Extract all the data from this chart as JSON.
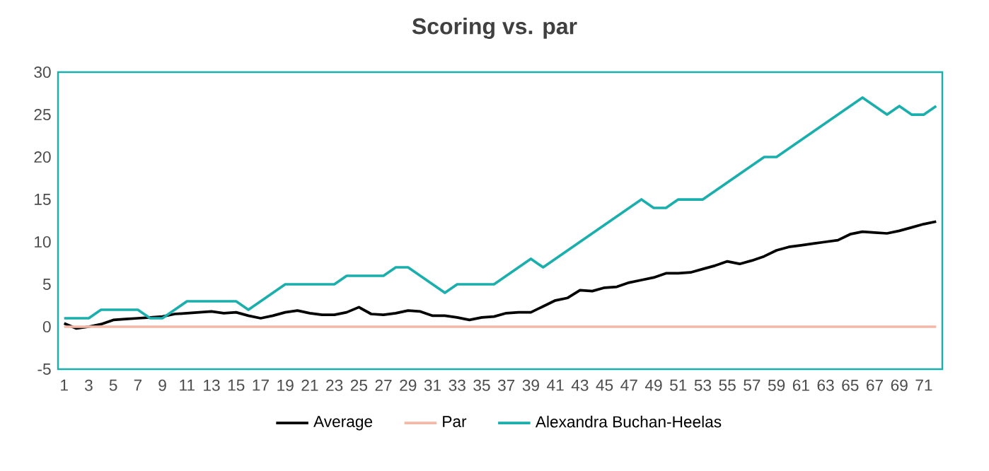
{
  "chart_data": {
    "type": "line",
    "title": "Scoring vs. par",
    "categories": [
      "1",
      null,
      "3",
      null,
      "5",
      null,
      "7",
      null,
      "9",
      null,
      "11",
      null,
      "13",
      null,
      "15",
      null,
      "17",
      null,
      "19",
      null,
      "21",
      null,
      "23",
      null,
      "25",
      null,
      "27",
      null,
      "29",
      null,
      "31",
      null,
      "33",
      null,
      "35",
      null,
      "37",
      null,
      "39",
      null,
      "41",
      null,
      "43",
      null,
      "45",
      null,
      "47",
      null,
      "49",
      null,
      "51",
      null,
      "53",
      null,
      "55",
      null,
      "57",
      null,
      "59",
      null,
      "61",
      null,
      "63",
      null,
      "65",
      null,
      "67",
      null,
      "69",
      null,
      "71",
      null
    ],
    "series": [
      {
        "name": "Average",
        "color": "#000000",
        "values": [
          0.4,
          -0.2,
          0,
          0.3,
          0.8,
          0.9,
          1.0,
          1.1,
          1.2,
          1.5,
          1.6,
          1.7,
          1.8,
          1.6,
          1.7,
          1.3,
          1.0,
          1.3,
          1.7,
          1.9,
          1.6,
          1.4,
          1.4,
          1.7,
          2.3,
          1.5,
          1.4,
          1.6,
          1.9,
          1.8,
          1.3,
          1.3,
          1.1,
          0.8,
          1.1,
          1.2,
          1.6,
          1.7,
          1.7,
          2.4,
          3.1,
          3.4,
          4.3,
          4.2,
          4.6,
          4.7,
          5.2,
          5.5,
          5.8,
          6.3,
          6.3,
          6.4,
          6.8,
          7.2,
          7.7,
          7.4,
          7.8,
          8.3,
          9.0,
          9.4,
          9.6,
          9.8,
          10.0,
          10.2,
          10.9,
          11.2,
          11.1,
          11.0,
          11.3,
          11.7,
          12.1,
          12.4
        ]
      },
      {
        "name": "Par",
        "color": "#f4b8a8",
        "values": [
          0,
          0,
          0,
          0,
          0,
          0,
          0,
          0,
          0,
          0,
          0,
          0,
          0,
          0,
          0,
          0,
          0,
          0,
          0,
          0,
          0,
          0,
          0,
          0,
          0,
          0,
          0,
          0,
          0,
          0,
          0,
          0,
          0,
          0,
          0,
          0,
          0,
          0,
          0,
          0,
          0,
          0,
          0,
          0,
          0,
          0,
          0,
          0,
          0,
          0,
          0,
          0,
          0,
          0,
          0,
          0,
          0,
          0,
          0,
          0,
          0,
          0,
          0,
          0,
          0,
          0,
          0,
          0,
          0,
          0,
          0,
          0
        ]
      },
      {
        "name": "Alexandra Buchan-Heelas",
        "color": "#1aaead",
        "values": [
          1,
          1,
          1,
          2,
          2,
          2,
          2,
          1,
          1,
          2,
          3,
          3,
          3,
          3,
          3,
          2,
          3,
          4,
          5,
          5,
          5,
          5,
          5,
          6,
          6,
          6,
          6,
          7,
          7,
          6,
          5,
          4,
          5,
          5,
          5,
          5,
          6,
          7,
          8,
          7,
          8,
          9,
          10,
          11,
          12,
          13,
          14,
          15,
          14,
          14,
          15,
          15,
          15,
          16,
          17,
          18,
          19,
          20,
          20,
          21,
          22,
          23,
          24,
          25,
          26,
          27,
          26,
          25,
          26,
          25,
          25,
          26
        ]
      }
    ],
    "ylim": [
      -5,
      30
    ],
    "yticks": [
      -5,
      0,
      5,
      10,
      15,
      20,
      25,
      30
    ],
    "grid": false,
    "legend": "bottom",
    "marker": "none",
    "line_style": "solid"
  }
}
